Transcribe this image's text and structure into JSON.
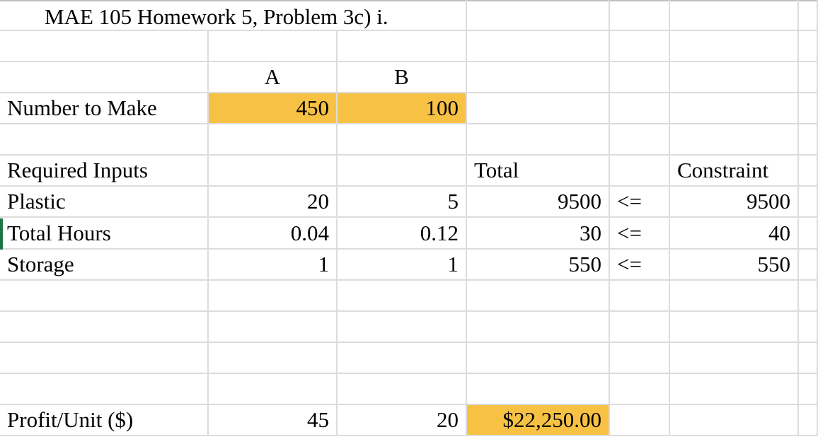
{
  "title": "MAE 105 Homework 5, Problem 3c) i.",
  "header": {
    "col_a": "A",
    "col_b": "B"
  },
  "number_to_make": {
    "label": "Number to Make",
    "a": "450",
    "b": "100"
  },
  "required_inputs": {
    "label": "Required Inputs",
    "total_header": "Total",
    "constraint_header": "Constraint",
    "rows": [
      {
        "label": "Plastic",
        "a": "20",
        "b": "5",
        "total": "9500",
        "op": "<=",
        "constraint": "9500"
      },
      {
        "label": "Total Hours",
        "a": "0.04",
        "b": "0.12",
        "total": "30",
        "op": "<=",
        "constraint": "40"
      },
      {
        "label": "Storage",
        "a": "1",
        "b": "1",
        "total": "550",
        "op": "<=",
        "constraint": "550"
      }
    ]
  },
  "profit": {
    "label": "Profit/Unit ($)",
    "a": "45",
    "b": "20",
    "total": "$22,250.00"
  },
  "colors": {
    "highlight": "#f7c244",
    "gridline": "#dcdcdc",
    "selection": "#217346"
  }
}
